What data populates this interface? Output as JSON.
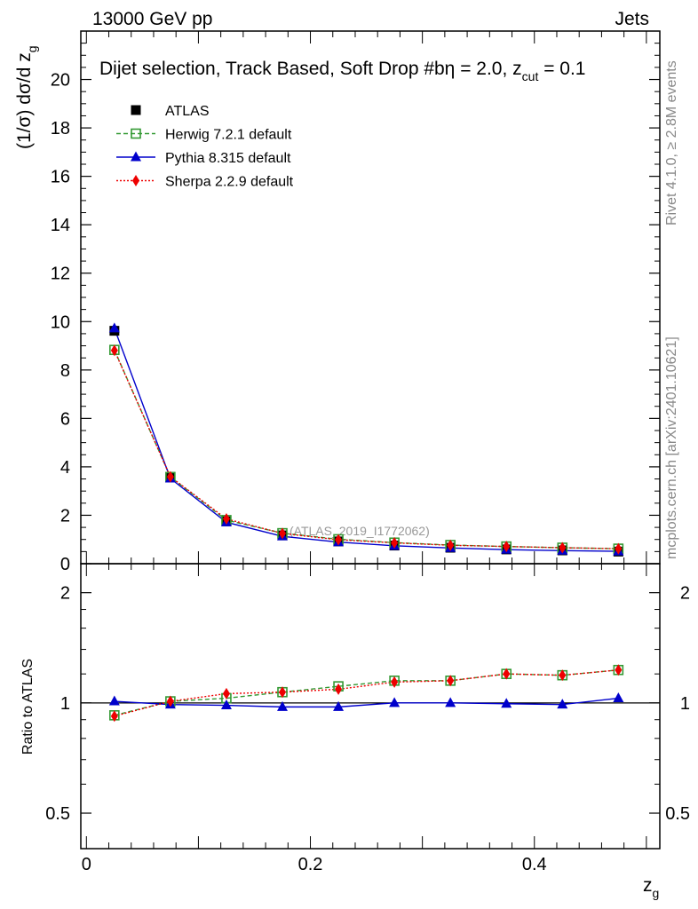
{
  "header": {
    "left": "13000 GeV pp",
    "right": "Jets"
  },
  "plot_title": "Dijet selection, Track Based, Soft Drop #bη = 2.0, z",
  "plot_title_sub": "cut",
  "plot_title_tail": " = 0.1",
  "side_text": {
    "rivet": "Rivet 4.1.0, ≥ 2.8M events",
    "mcplots": "mcplots.cern.ch [arXiv:2401.10621]"
  },
  "watermark": "(ATLAS_2019_I1772062)",
  "colors": {
    "atlas": "#000000",
    "herwig": "#339933",
    "pythia": "#0000cc",
    "sherpa": "#ee0000"
  },
  "chart_data": [
    {
      "type": "line",
      "panel": "main",
      "ylabel_pre": "(1/σ) dσ/d z",
      "ylabel_sub": "g",
      "ylim": [
        0,
        22
      ],
      "yticks": [
        "0",
        "2",
        "4",
        "6",
        "8",
        "10",
        "12",
        "14",
        "16",
        "18",
        "20"
      ],
      "x": [
        0.025,
        0.075,
        0.125,
        0.175,
        0.225,
        0.275,
        0.325,
        0.375,
        0.425,
        0.475
      ],
      "legend": [
        "ATLAS",
        "Herwig 7.2.1 default",
        "Pythia 8.315 default",
        "Sherpa 2.2.9 default"
      ],
      "series": [
        {
          "name": "ATLAS",
          "values": [
            9.62,
            3.58,
            1.75,
            1.17,
            0.92,
            0.75,
            0.66,
            0.59,
            0.55,
            0.5
          ]
        },
        {
          "name": "Herwig 7.2.1 default",
          "values": [
            8.83,
            3.58,
            1.8,
            1.26,
            1.01,
            0.87,
            0.77,
            0.71,
            0.66,
            0.62
          ]
        },
        {
          "name": "Pythia 8.315 default",
          "values": [
            9.72,
            3.52,
            1.71,
            1.13,
            0.89,
            0.74,
            0.65,
            0.58,
            0.54,
            0.51
          ]
        },
        {
          "name": "Sherpa 2.2.9 default",
          "values": [
            8.81,
            3.59,
            1.85,
            1.25,
            0.99,
            0.86,
            0.76,
            0.71,
            0.66,
            0.62
          ]
        }
      ]
    },
    {
      "type": "line",
      "panel": "ratio",
      "ylabel": "Ratio to ATLAS",
      "ylim": [
        0.4,
        2.4
      ],
      "yscale": "log",
      "yticks": [
        "0.5",
        "1",
        "2"
      ],
      "xlabel_main": "z",
      "xlabel_sub": "g",
      "xlim": [
        -0.005,
        0.512
      ],
      "xticks": [
        "0",
        "0.2",
        "0.4"
      ],
      "series": [
        {
          "name": "Herwig 7.2.1 default",
          "values": [
            0.925,
            1.01,
            1.03,
            1.07,
            1.11,
            1.15,
            1.15,
            1.2,
            1.19,
            1.23
          ]
        },
        {
          "name": "Pythia 8.315 default",
          "values": [
            1.01,
            0.99,
            0.985,
            0.975,
            0.975,
            1.0,
            1.0,
            0.995,
            0.99,
            1.03
          ]
        },
        {
          "name": "Sherpa 2.2.9 default",
          "values": [
            0.92,
            1.01,
            1.06,
            1.07,
            1.09,
            1.14,
            1.15,
            1.2,
            1.19,
            1.23
          ]
        }
      ]
    }
  ]
}
